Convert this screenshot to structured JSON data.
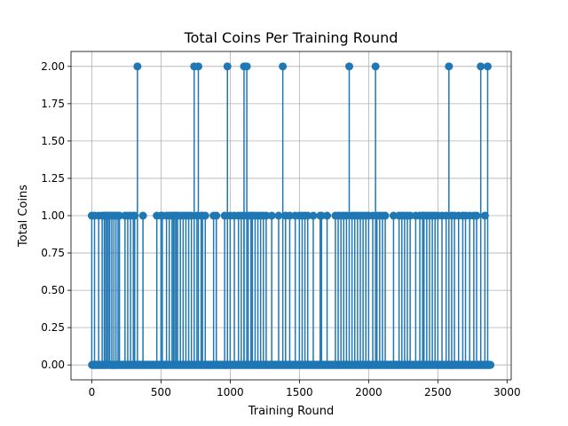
{
  "chart_data": {
    "type": "scatter",
    "style": "stem",
    "title": "Total Coins Per Training Round",
    "xlabel": "Training Round",
    "ylabel": "Total Coins",
    "xlim": [
      -150,
      3030
    ],
    "ylim": [
      -0.1,
      2.1
    ],
    "xticks": [
      0,
      500,
      1000,
      1500,
      2000,
      2500,
      3000
    ],
    "xtick_labels": [
      "0",
      "500",
      "1000",
      "1500",
      "2000",
      "2500",
      "3000"
    ],
    "yticks": [
      0.0,
      0.25,
      0.5,
      0.75,
      1.0,
      1.25,
      1.5,
      1.75,
      2.0
    ],
    "ytick_labels": [
      "0.00",
      "0.25",
      "0.50",
      "0.75",
      "1.00",
      "1.25",
      "1.50",
      "1.75",
      "2.00"
    ],
    "grid": true,
    "color": "#1f77b4",
    "round_range": [
      0,
      2880
    ],
    "total_rounds": 2881,
    "points_value_1": [
      0,
      20,
      50,
      75,
      90,
      100,
      110,
      120,
      130,
      145,
      160,
      175,
      190,
      200,
      240,
      260,
      280,
      300,
      310,
      370,
      470,
      500,
      510,
      540,
      560,
      580,
      590,
      600,
      610,
      620,
      640,
      660,
      680,
      700,
      720,
      760,
      790,
      800,
      820,
      880,
      900,
      960,
      1000,
      1030,
      1060,
      1080,
      1100,
      1130,
      1150,
      1160,
      1180,
      1200,
      1220,
      1240,
      1260,
      1300,
      1350,
      1400,
      1430,
      1470,
      1500,
      1520,
      1540,
      1560,
      1600,
      1650,
      1660,
      1700,
      1760,
      1780,
      1800,
      1820,
      1840,
      1880,
      1900,
      1920,
      1940,
      1960,
      1980,
      2000,
      2030,
      2060,
      2080,
      2100,
      2120,
      2180,
      2220,
      2240,
      2260,
      2280,
      2300,
      2340,
      2370,
      2390,
      2400,
      2420,
      2440,
      2460,
      2480,
      2500,
      2530,
      2560,
      2600,
      2620,
      2650,
      2680,
      2700,
      2730,
      2760,
      2780,
      2840
    ],
    "points_value_2": [
      330,
      740,
      770,
      980,
      1100,
      1120,
      1380,
      1860,
      2050,
      2580,
      2810,
      2860
    ]
  }
}
